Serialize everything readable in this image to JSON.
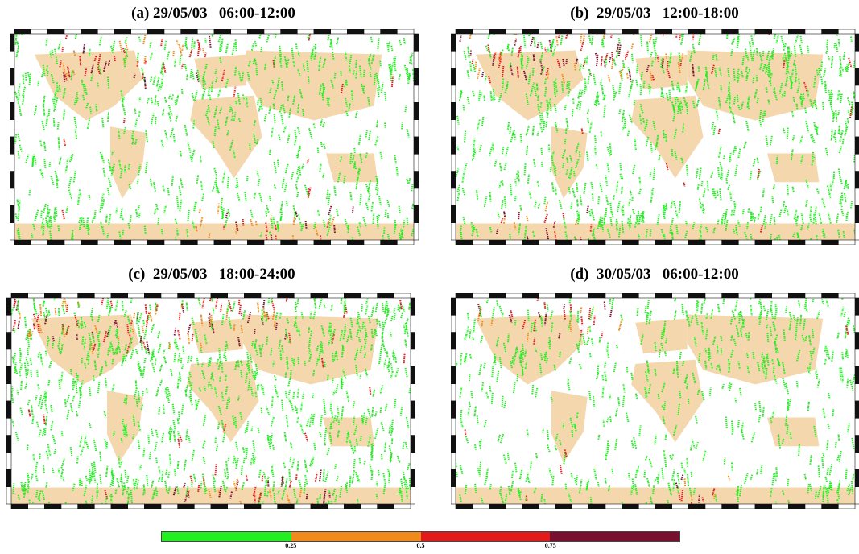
{
  "panels": [
    {
      "id": "a",
      "title": "(a) 29/05/03   06:00-12:00",
      "warm_band": [
        0.1,
        0.5
      ],
      "south_warm": [
        0.45,
        0.85
      ],
      "density": 1.0
    },
    {
      "id": "b",
      "title": "(b)  29/05/03   12:00-18:00",
      "warm_band": [
        0.0,
        0.6
      ],
      "south_warm": [
        0.05,
        0.35
      ],
      "density": 1.2
    },
    {
      "id": "c",
      "title": "(c)  29/05/03   18:00-24:00",
      "warm_band": [
        0.0,
        0.7
      ],
      "south_warm": [
        0.4,
        0.8
      ],
      "density": 1.4
    },
    {
      "id": "d",
      "title": "(d)  30/05/03   06:00-12:00",
      "warm_band": [
        0.05,
        0.45
      ],
      "south_warm": [
        0.55,
        0.75
      ],
      "density": 0.8
    }
  ],
  "colorbar": {
    "segments": [
      {
        "color": "#22ee22"
      },
      {
        "color": "#f08a1a"
      },
      {
        "color": "#e31a1a"
      },
      {
        "color": "#7a1030"
      }
    ],
    "ticks": [
      "0.25",
      "0.5",
      "0.75"
    ]
  },
  "colors": {
    "land": "#f5d7ae",
    "ocean": "#ffffff",
    "frame_dark": "#111111",
    "frame_light": "#ffffff"
  }
}
